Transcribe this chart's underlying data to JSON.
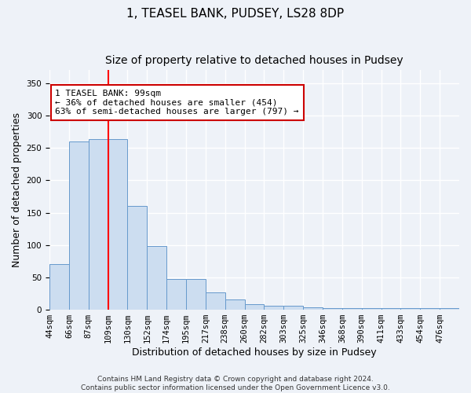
{
  "title": "1, TEASEL BANK, PUDSEY, LS28 8DP",
  "subtitle": "Size of property relative to detached houses in Pudsey",
  "xlabel": "Distribution of detached houses by size in Pudsey",
  "ylabel": "Number of detached properties",
  "categories": [
    "44sqm",
    "66sqm",
    "87sqm",
    "109sqm",
    "130sqm",
    "152sqm",
    "174sqm",
    "195sqm",
    "217sqm",
    "238sqm",
    "260sqm",
    "282sqm",
    "303sqm",
    "325sqm",
    "346sqm",
    "368sqm",
    "390sqm",
    "411sqm",
    "433sqm",
    "454sqm",
    "476sqm"
  ],
  "values": [
    70,
    260,
    263,
    263,
    160,
    98,
    48,
    48,
    27,
    16,
    9,
    6,
    6,
    4,
    3,
    3,
    3,
    3,
    3,
    3,
    3
  ],
  "bar_color": "#ccddf0",
  "bar_edge_color": "#6699cc",
  "red_line_x": 3.0,
  "annotation_text": "1 TEASEL BANK: 99sqm\n← 36% of detached houses are smaller (454)\n63% of semi-detached houses are larger (797) →",
  "annotation_box_color": "#ffffff",
  "annotation_box_edge": "#cc0000",
  "ylim": [
    0,
    370
  ],
  "yticks": [
    0,
    50,
    100,
    150,
    200,
    250,
    300,
    350
  ],
  "footer": "Contains HM Land Registry data © Crown copyright and database right 2024.\nContains public sector information licensed under the Open Government Licence v3.0.",
  "bg_color": "#eef2f8",
  "plot_bg_color": "#eef2f8",
  "grid_color": "#ffffff",
  "title_fontsize": 11,
  "subtitle_fontsize": 10,
  "tick_fontsize": 7.5,
  "ylabel_fontsize": 9,
  "xlabel_fontsize": 9,
  "ann_fontsize": 8,
  "footer_fontsize": 6.5
}
